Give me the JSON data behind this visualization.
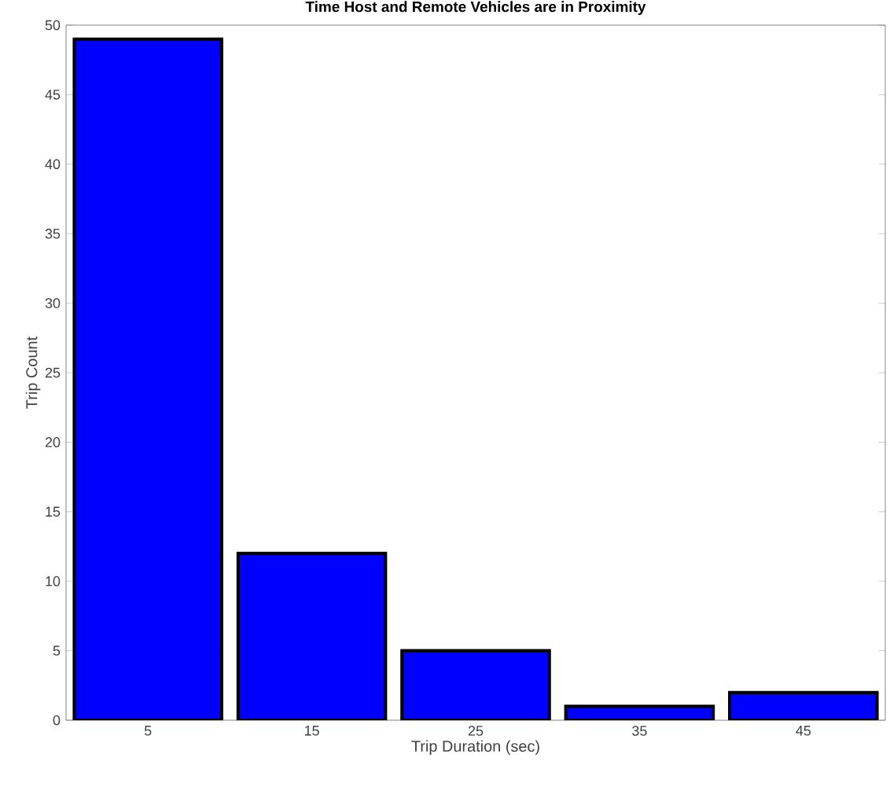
{
  "chart_data": {
    "type": "bar",
    "title": "Time Host and Remote Vehicles are in Proximity",
    "xlabel": "Trip Duration (sec)",
    "ylabel": "Trip Count",
    "categories": [
      "5",
      "15",
      "25",
      "35",
      "45"
    ],
    "values": [
      49,
      12,
      5,
      1,
      2
    ],
    "color": "#0000ff",
    "ylim": [
      0,
      50
    ],
    "yticks": [
      0,
      5,
      10,
      15,
      20,
      25,
      30,
      35,
      40,
      45,
      50
    ],
    "grid": false
  }
}
